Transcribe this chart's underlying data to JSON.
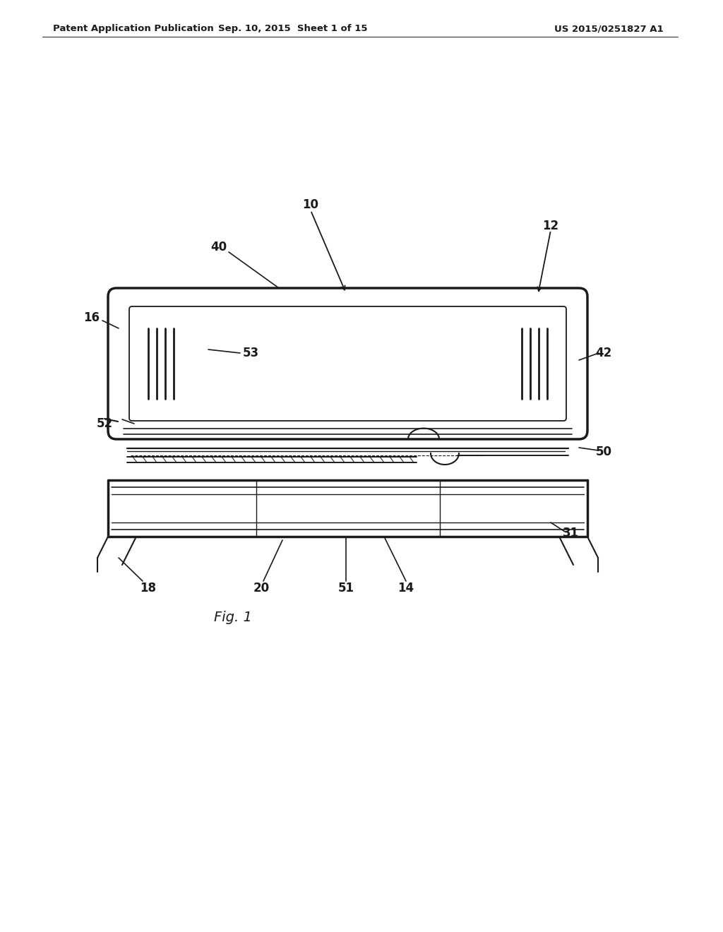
{
  "bg_color": "#ffffff",
  "line_color": "#1a1a1a",
  "header_left": "Patent Application Publication",
  "header_mid": "Sep. 10, 2015  Sheet 1 of 15",
  "header_right": "US 2015/0251827 A1",
  "fig_label": "Fig. 1",
  "header_fontsize": 9.5,
  "label_fontsize": 12
}
